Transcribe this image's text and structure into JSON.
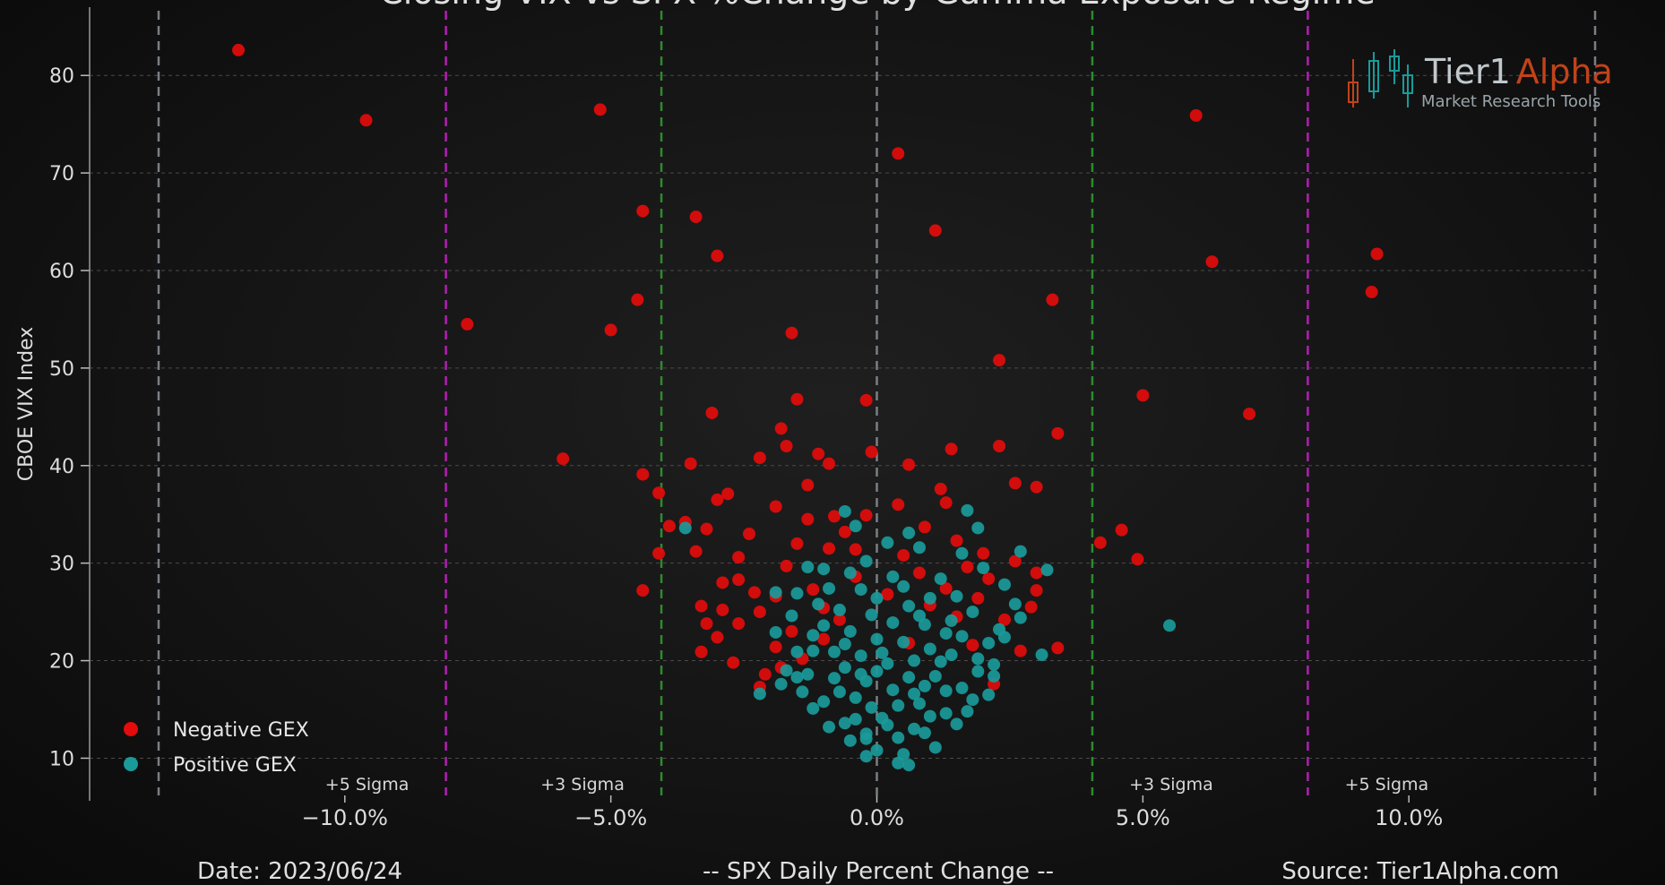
{
  "chart_data": {
    "type": "scatter",
    "title": "Closing VIX vs SPX %Change by Gamma Exposure Regime",
    "xlabel": "-- SPX Daily Percent Change --",
    "ylabel": "CBOE VIX Index",
    "xlim": [
      -13.5,
      13.5
    ],
    "ylim": [
      6,
      87
    ],
    "x_ticks": [
      {
        "value": -10,
        "label": "−10.0%"
      },
      {
        "value": -5,
        "label": "−5.0%"
      },
      {
        "value": 0,
        "label": "0.0%"
      },
      {
        "value": 5,
        "label": "5.0%"
      },
      {
        "value": 10,
        "label": "10.0%"
      }
    ],
    "y_ticks": [
      10,
      20,
      30,
      40,
      50,
      60,
      70,
      80
    ],
    "grid": "horizontal dashed",
    "legend_position": "bottom-left",
    "sigma_lines": [
      {
        "x": -13.5,
        "label": "",
        "color": "#7a7f85"
      },
      {
        "x": -8.1,
        "label": "+5 Sigma",
        "color": "#b020b0"
      },
      {
        "x": -4.05,
        "label": "+3 Sigma",
        "color": "#2e8b2e"
      },
      {
        "x": 0,
        "label": "",
        "color": "#7a7f85"
      },
      {
        "x": 4.05,
        "label": "+3 Sigma",
        "color": "#2e8b2e"
      },
      {
        "x": 8.1,
        "label": "+5 Sigma",
        "color": "#b020b0"
      },
      {
        "x": 13.5,
        "label": "",
        "color": "#7a7f85"
      }
    ],
    "series": [
      {
        "name": "Negative GEX",
        "color": "#e30b0b",
        "points": [
          [
            -12.0,
            82.6
          ],
          [
            -9.6,
            75.4
          ],
          [
            -5.2,
            76.5
          ],
          [
            0.4,
            72.0
          ],
          [
            6.0,
            75.9
          ],
          [
            -4.4,
            66.1
          ],
          [
            -3.4,
            65.5
          ],
          [
            -3.0,
            61.5
          ],
          [
            1.1,
            64.1
          ],
          [
            6.3,
            60.9
          ],
          [
            9.4,
            61.7
          ],
          [
            9.3,
            57.8
          ],
          [
            -7.7,
            54.5
          ],
          [
            -4.5,
            57.0
          ],
          [
            -5.0,
            53.9
          ],
          [
            -1.6,
            53.6
          ],
          [
            3.3,
            57.0
          ],
          [
            2.3,
            50.8
          ],
          [
            -1.5,
            46.8
          ],
          [
            -0.2,
            46.7
          ],
          [
            -3.1,
            45.4
          ],
          [
            5.0,
            47.2
          ],
          [
            7.0,
            45.3
          ],
          [
            3.4,
            43.3
          ],
          [
            -1.8,
            43.8
          ],
          [
            -5.9,
            40.7
          ],
          [
            -4.4,
            39.1
          ],
          [
            -3.5,
            40.2
          ],
          [
            -1.1,
            41.2
          ],
          [
            -0.1,
            41.4
          ],
          [
            1.4,
            41.7
          ],
          [
            2.3,
            42.0
          ],
          [
            -1.7,
            42.0
          ],
          [
            -0.9,
            40.2
          ],
          [
            -2.2,
            40.8
          ],
          [
            0.6,
            40.1
          ],
          [
            2.6,
            38.2
          ],
          [
            3.0,
            37.8
          ],
          [
            -1.3,
            38.0
          ],
          [
            1.2,
            37.6
          ],
          [
            -4.1,
            37.2
          ],
          [
            -2.8,
            37.1
          ],
          [
            -3.0,
            36.5
          ],
          [
            -1.9,
            35.8
          ],
          [
            0.4,
            36.0
          ],
          [
            1.3,
            36.2
          ],
          [
            -3.6,
            34.2
          ],
          [
            -3.9,
            33.8
          ],
          [
            -0.8,
            34.8
          ],
          [
            -3.2,
            33.5
          ],
          [
            4.6,
            33.4
          ],
          [
            4.2,
            32.1
          ],
          [
            4.9,
            30.4
          ],
          [
            -4.1,
            31.0
          ],
          [
            -3.4,
            31.2
          ],
          [
            3.0,
            29.0
          ],
          [
            3.0,
            27.2
          ],
          [
            -4.4,
            27.2
          ],
          [
            -2.6,
            28.3
          ],
          [
            -2.9,
            28.0
          ],
          [
            2.9,
            25.5
          ],
          [
            3.4,
            21.3
          ],
          [
            -3.3,
            25.6
          ],
          [
            -3.2,
            23.8
          ],
          [
            -3.0,
            22.4
          ],
          [
            -3.3,
            20.9
          ],
          [
            -2.7,
            19.8
          ],
          [
            2.7,
            21.0
          ],
          [
            -2.1,
            18.6
          ],
          [
            -2.2,
            17.3
          ],
          [
            2.2,
            17.6
          ],
          [
            -2.4,
            33.0
          ],
          [
            -1.5,
            32.0
          ],
          [
            -0.9,
            31.5
          ],
          [
            0.9,
            33.7
          ],
          [
            1.5,
            32.3
          ],
          [
            2.0,
            31.0
          ],
          [
            2.6,
            30.2
          ],
          [
            -2.2,
            25.0
          ],
          [
            -1.9,
            26.6
          ],
          [
            -1.2,
            27.3
          ],
          [
            1.9,
            26.4
          ],
          [
            2.4,
            24.2
          ],
          [
            -1.6,
            23.0
          ],
          [
            -1.0,
            22.2
          ],
          [
            -1.4,
            20.2
          ],
          [
            1.8,
            21.6
          ],
          [
            -1.9,
            21.4
          ],
          [
            -1.7,
            29.7
          ],
          [
            -0.4,
            28.6
          ],
          [
            0.2,
            26.8
          ],
          [
            0.8,
            29.0
          ],
          [
            1.3,
            27.4
          ],
          [
            2.1,
            28.4
          ],
          [
            -0.6,
            33.2
          ],
          [
            -2.6,
            30.6
          ],
          [
            -1.0,
            25.4
          ],
          [
            0.5,
            30.8
          ],
          [
            1.0,
            25.7
          ],
          [
            -2.6,
            23.8
          ],
          [
            -2.9,
            25.2
          ],
          [
            -0.4,
            31.4
          ],
          [
            1.7,
            29.6
          ],
          [
            -1.3,
            34.5
          ],
          [
            -0.2,
            34.9
          ],
          [
            -2.3,
            27.0
          ],
          [
            -1.8,
            19.3
          ],
          [
            0.6,
            21.8
          ],
          [
            -0.7,
            24.2
          ],
          [
            1.5,
            24.5
          ]
        ]
      },
      {
        "name": "Positive GEX",
        "color": "#1a9a9a",
        "points": [
          [
            -3.6,
            33.6
          ],
          [
            5.5,
            23.6
          ],
          [
            3.1,
            20.6
          ],
          [
            -0.6,
            35.3
          ],
          [
            1.7,
            35.4
          ],
          [
            3.2,
            29.3
          ],
          [
            1.9,
            33.6
          ],
          [
            -0.4,
            33.8
          ],
          [
            0.8,
            31.6
          ],
          [
            -1.0,
            29.4
          ],
          [
            2.7,
            31.2
          ],
          [
            2.6,
            25.8
          ],
          [
            2.7,
            24.4
          ],
          [
            2.3,
            23.2
          ],
          [
            2.1,
            21.8
          ],
          [
            2.2,
            19.6
          ],
          [
            2.2,
            18.4
          ],
          [
            2.1,
            16.5
          ],
          [
            1.7,
            14.8
          ],
          [
            1.1,
            11.1
          ],
          [
            0.6,
            9.3
          ],
          [
            0.4,
            9.5
          ],
          [
            -0.2,
            10.2
          ],
          [
            -0.5,
            11.8
          ],
          [
            -0.9,
            13.2
          ],
          [
            -1.2,
            15.1
          ],
          [
            -1.4,
            16.8
          ],
          [
            -1.5,
            18.3
          ],
          [
            -2.2,
            16.6
          ],
          [
            -1.5,
            20.9
          ],
          [
            -1.2,
            22.6
          ],
          [
            -1.5,
            26.9
          ],
          [
            -1.3,
            29.6
          ],
          [
            0.7,
            13.0
          ],
          [
            1.0,
            14.3
          ],
          [
            1.3,
            16.9
          ],
          [
            1.4,
            20.6
          ],
          [
            1.4,
            24.1
          ],
          [
            1.5,
            26.6
          ],
          [
            1.2,
            28.4
          ],
          [
            0.3,
            28.6
          ],
          [
            -0.3,
            27.3
          ],
          [
            -0.7,
            25.2
          ],
          [
            -1.0,
            23.6
          ],
          [
            -1.2,
            21.0
          ],
          [
            -0.8,
            18.2
          ],
          [
            -0.4,
            16.2
          ],
          [
            0.1,
            14.1
          ],
          [
            0.4,
            12.1
          ],
          [
            0.8,
            15.6
          ],
          [
            1.1,
            18.4
          ],
          [
            1.0,
            21.2
          ],
          [
            0.9,
            23.7
          ],
          [
            0.6,
            25.6
          ],
          [
            0.0,
            26.4
          ],
          [
            -0.5,
            23.0
          ],
          [
            -0.8,
            20.9
          ],
          [
            -0.6,
            19.3
          ],
          [
            -0.2,
            17.9
          ],
          [
            0.2,
            19.7
          ],
          [
            0.5,
            21.9
          ],
          [
            0.3,
            23.9
          ],
          [
            0.0,
            22.2
          ],
          [
            -0.3,
            20.5
          ],
          [
            0.0,
            18.9
          ],
          [
            0.3,
            17.0
          ],
          [
            0.6,
            18.3
          ],
          [
            0.7,
            20.0
          ],
          [
            -0.1,
            15.2
          ],
          [
            0.2,
            13.4
          ],
          [
            -0.4,
            14.0
          ],
          [
            -0.7,
            16.8
          ],
          [
            0.9,
            17.4
          ],
          [
            1.2,
            19.9
          ],
          [
            1.6,
            22.5
          ],
          [
            1.8,
            25.0
          ],
          [
            -0.9,
            27.4
          ],
          [
            -0.2,
            30.2
          ],
          [
            0.5,
            27.6
          ],
          [
            1.0,
            26.4
          ],
          [
            -0.5,
            29.0
          ],
          [
            0.2,
            32.1
          ],
          [
            -1.1,
            25.8
          ],
          [
            -1.6,
            24.6
          ],
          [
            -1.9,
            22.9
          ],
          [
            -1.7,
            19.0
          ],
          [
            -1.8,
            17.6
          ],
          [
            1.9,
            20.2
          ],
          [
            1.9,
            18.9
          ],
          [
            1.6,
            17.2
          ],
          [
            2.4,
            22.4
          ],
          [
            -0.2,
            12.5
          ],
          [
            0.0,
            10.8
          ],
          [
            0.9,
            12.6
          ],
          [
            1.3,
            14.6
          ],
          [
            -1.0,
            15.8
          ],
          [
            -0.6,
            13.6
          ],
          [
            0.4,
            15.4
          ],
          [
            0.7,
            16.6
          ],
          [
            -0.3,
            18.6
          ],
          [
            0.1,
            20.8
          ],
          [
            -0.1,
            24.7
          ],
          [
            0.8,
            24.6
          ],
          [
            1.3,
            22.8
          ],
          [
            -0.6,
            21.7
          ],
          [
            -0.2,
            12.0
          ],
          [
            0.5,
            10.4
          ],
          [
            1.5,
            13.5
          ],
          [
            1.8,
            16.0
          ],
          [
            -1.3,
            18.6
          ],
          [
            2.4,
            27.8
          ],
          [
            2.0,
            29.5
          ],
          [
            1.6,
            31.0
          ],
          [
            -1.9,
            27.0
          ],
          [
            0.6,
            33.1
          ]
        ]
      }
    ]
  },
  "logo": {
    "brand_a": "Tier1",
    "brand_b": "Alpha",
    "tagline": "Market Research Tools",
    "color_a": "#c0c8cc",
    "color_b": "#c0431a"
  },
  "footer": {
    "date": "Date: 2023/06/24",
    "source": "Source: Tier1Alpha.com"
  }
}
